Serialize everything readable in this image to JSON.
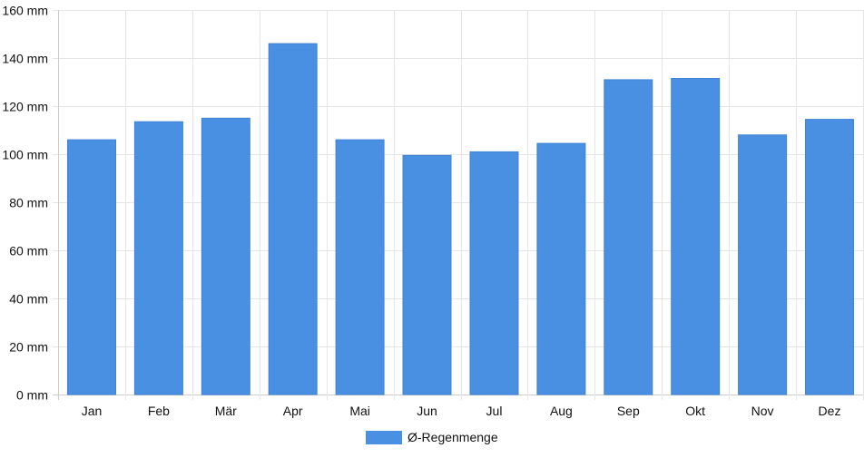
{
  "chart_data": {
    "type": "bar",
    "categories": [
      "Jan",
      "Feb",
      "Mär",
      "Apr",
      "Mai",
      "Jun",
      "Jul",
      "Aug",
      "Sep",
      "Okt",
      "Nov",
      "Dez"
    ],
    "series": [
      {
        "name": "Ø-Regenmenge",
        "values": [
          106,
          113.5,
          115,
          146,
          106,
          99.5,
          101,
          104.5,
          131,
          131.5,
          108,
          114.5
        ],
        "color": "#4a90e2"
      }
    ],
    "unit": "mm",
    "y_tick_labels": [
      "0 mm",
      "20 mm",
      "40 mm",
      "60 mm",
      "80 mm",
      "100 mm",
      "120 mm",
      "140 mm",
      "160 mm"
    ],
    "ylim": [
      0,
      160
    ],
    "y_tick_step": 20,
    "grid": true,
    "legend_position": "bottom",
    "grid_color": "#e6e6e6",
    "axis_color": "#cccccc"
  }
}
